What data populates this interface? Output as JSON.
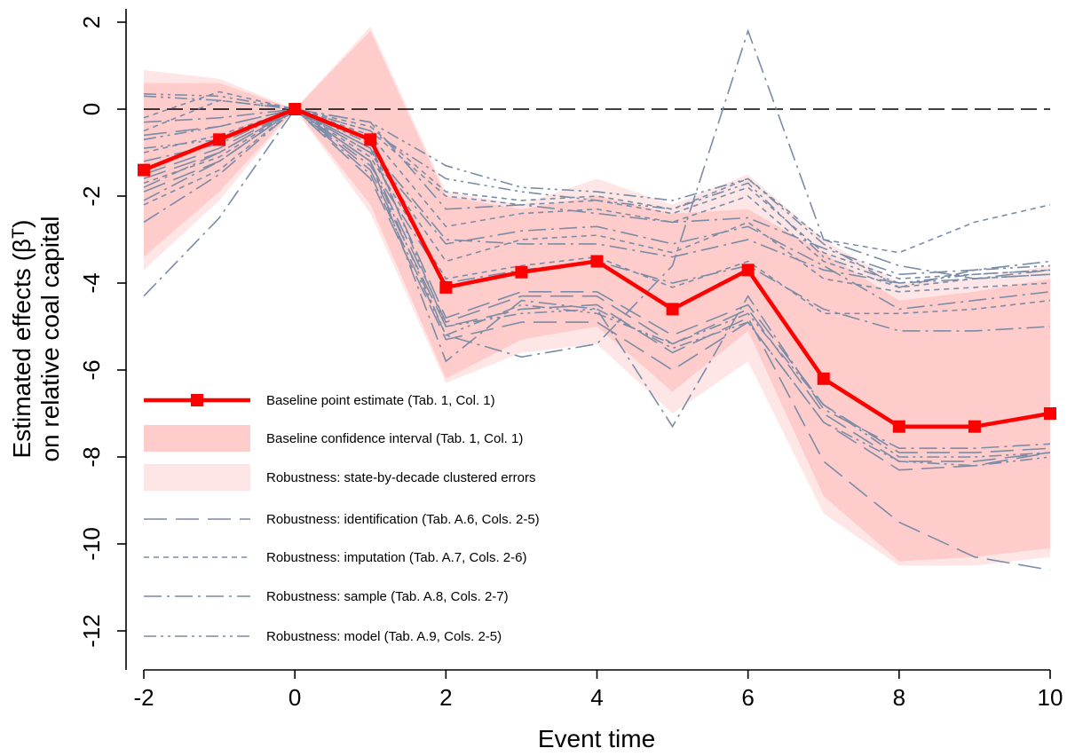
{
  "chart_data": {
    "type": "line",
    "xlabel": "Event time",
    "ylabel_line1": "Estimated effects (βᵀ)",
    "ylabel_line2": "on relative coal capital",
    "xlim": [
      -2,
      10
    ],
    "ylim": [
      -13,
      2.4
    ],
    "x_ticks": [
      -2,
      0,
      2,
      4,
      6,
      8,
      10
    ],
    "x_tick_labels": [
      "-2",
      "0",
      "2",
      "4",
      "6",
      "8",
      "10"
    ],
    "y_ticks": [
      2,
      0,
      -2,
      -4,
      -6,
      -8,
      -10,
      -12
    ],
    "y_tick_labels": [
      "2",
      "0",
      "-2",
      "-4",
      "-6",
      "-8",
      "-10",
      "-12"
    ],
    "reference_line": {
      "y": 0,
      "style": "dashed"
    },
    "x": [
      -2,
      -1,
      0,
      1,
      2,
      3,
      4,
      5,
      6,
      7,
      8,
      9,
      10
    ],
    "baseline_estimate": {
      "name": "Baseline point estimate (Tab. 1, Col. 1)",
      "color": "#ff0000",
      "values": [
        -1.4,
        -0.7,
        0,
        -0.7,
        -4.1,
        -3.75,
        -3.5,
        -4.6,
        -3.7,
        -6.2,
        -7.3,
        -7.3,
        -7.0
      ]
    },
    "baseline_ci": {
      "name": "Baseline confidence interval (Tab. 1, Col. 1)",
      "color": "#ffcccc",
      "upper": [
        0.6,
        0.6,
        0,
        1.8,
        -2.0,
        -2.3,
        -2.0,
        -2.4,
        -2.3,
        -3.3,
        -4.4,
        -4.2,
        -3.9
      ],
      "lower": [
        -3.4,
        -1.9,
        0,
        -2.2,
        -6.2,
        -5.3,
        -5.0,
        -6.5,
        -5.1,
        -8.9,
        -10.4,
        -10.3,
        -10.1
      ]
    },
    "robust_ci": {
      "name": "Robustness: state-by-decade clustered errors",
      "color": "#ffe6e6",
      "upper": [
        0.9,
        0.7,
        0,
        1.9,
        -1.9,
        -2.2,
        -1.6,
        -2.2,
        -1.5,
        -3.0,
        -4.0,
        -3.9,
        -3.6
      ],
      "lower": [
        -3.7,
        -2.1,
        0,
        -2.4,
        -6.3,
        -5.6,
        -5.4,
        -7.0,
        -5.8,
        -9.3,
        -10.5,
        -10.5,
        -10.3
      ]
    },
    "robustness_color": "#7a8ca6",
    "robustness_groups": [
      {
        "name": "Robustness: identification (Tab. A.6, Cols. 2-5)",
        "style": "longdash",
        "series": [
          [
            -1.5,
            -0.9,
            0,
            -1.2,
            -4.9,
            -4.3,
            -4.3,
            -5.4,
            -4.6,
            -7.0,
            -8.1,
            -8.1,
            -7.9
          ],
          [
            -1.6,
            -1.0,
            0,
            -1.4,
            -5.0,
            -4.6,
            -4.5,
            -5.6,
            -4.8,
            -8.1,
            -9.5,
            -10.3,
            -10.6
          ],
          [
            -0.6,
            -0.4,
            0,
            -0.9,
            -4.8,
            -4.2,
            -4.2,
            -5.2,
            -4.5,
            -6.8,
            -7.9,
            -7.9,
            -7.8
          ],
          [
            -1.9,
            -1.2,
            0,
            -1.6,
            -5.3,
            -4.9,
            -4.9,
            -6.0,
            -4.9,
            -7.2,
            -8.3,
            -8.2,
            -7.9
          ]
        ]
      },
      {
        "name": "Robustness: imputation (Tab. A.7, Cols. 2-6)",
        "style": "shortdash",
        "series": [
          [
            -0.2,
            0.4,
            0,
            -0.4,
            -1.9,
            -2.1,
            -2.0,
            -2.3,
            -1.6,
            -3.0,
            -3.3,
            -2.6,
            -2.2
          ],
          [
            -0.5,
            0.2,
            0,
            -0.5,
            -2.0,
            -2.2,
            -2.1,
            -2.4,
            -1.8,
            -3.3,
            -3.9,
            -3.8,
            -3.7
          ],
          [
            -1.0,
            -0.6,
            0,
            -0.6,
            -2.7,
            -2.4,
            -2.3,
            -2.6,
            -2.0,
            -3.5,
            -4.1,
            -3.9,
            -3.8
          ],
          [
            -1.7,
            -1.1,
            0,
            -1.0,
            -3.5,
            -3.0,
            -2.9,
            -3.3,
            -2.6,
            -3.9,
            -4.2,
            -4.1,
            -4.0
          ],
          [
            -2.2,
            -1.4,
            0,
            -1.1,
            -3.9,
            -3.6,
            -3.4,
            -4.1,
            -3.5,
            -4.7,
            -4.7,
            -4.6,
            -4.4
          ]
        ]
      },
      {
        "name": "Robustness: sample (Tab. A.8, Cols. 2-7)",
        "style": "dashdot",
        "series": [
          [
            -4.3,
            -2.5,
            0,
            -1.5,
            -5.2,
            -5.7,
            -5.4,
            -3.6,
            1.8,
            -3.0,
            -3.6,
            -3.9,
            -3.7
          ],
          [
            -2.6,
            -1.5,
            0,
            -1.3,
            -4.0,
            -3.7,
            -3.5,
            -4.0,
            -3.6,
            -4.6,
            -5.1,
            -5.1,
            -5.0
          ],
          [
            -2.1,
            -1.2,
            0,
            -1.0,
            -3.1,
            -2.8,
            -2.7,
            -3.1,
            -2.7,
            -3.6,
            -4.6,
            -4.4,
            -4.2
          ],
          [
            -0.3,
            -0.2,
            0,
            -0.3,
            -2.3,
            -2.2,
            -2.4,
            -2.6,
            -2.5,
            -3.2,
            -3.8,
            -3.7,
            -3.5
          ],
          [
            -1.2,
            -0.8,
            0,
            -0.9,
            -3.0,
            -3.1,
            -3.1,
            -3.4,
            -3.0,
            -3.7,
            -4.0,
            -3.9,
            -3.8
          ],
          [
            -1.8,
            -1.0,
            0,
            -1.2,
            -5.8,
            -4.4,
            -4.6,
            -7.3,
            -4.3,
            -6.9,
            -7.8,
            -7.8,
            -7.7
          ]
        ]
      },
      {
        "name": "Robustness: model (Tab. A.9, Cols. 2-5)",
        "style": "dashdotdot",
        "series": [
          [
            0.35,
            0.3,
            0,
            -0.3,
            -1.3,
            -1.8,
            -1.9,
            -2.1,
            -1.6,
            -3.1,
            -4.1,
            -3.7,
            -3.6
          ],
          [
            0.3,
            0.2,
            0,
            -0.5,
            -1.6,
            -1.9,
            -2.1,
            -2.3,
            -1.7,
            -3.4,
            -4.0,
            -3.8,
            -3.7
          ],
          [
            -0.7,
            -0.4,
            0,
            -1.2,
            -5.2,
            -4.5,
            -4.7,
            -5.4,
            -4.7,
            -6.8,
            -8.0,
            -8.0,
            -7.9
          ],
          [
            -0.9,
            -0.7,
            0,
            -0.8,
            -5.0,
            -4.7,
            -4.6,
            -5.5,
            -4.9,
            -7.2,
            -8.1,
            -8.2,
            -8.0
          ]
        ]
      }
    ],
    "legend_location": "bottom-left inside plot",
    "legend": [
      {
        "label": "Baseline point estimate (Tab. 1, Col. 1)",
        "kind": "marker-line"
      },
      {
        "label": "Baseline confidence interval (Tab. 1, Col. 1)",
        "kind": "band-dark"
      },
      {
        "label": "Robustness: state-by-decade clustered errors",
        "kind": "band-light"
      },
      {
        "label": "Robustness: identification (Tab. A.6, Cols. 2-5)",
        "kind": "longdash"
      },
      {
        "label": "Robustness: imputation (Tab. A.7, Cols. 2-6)",
        "kind": "shortdash"
      },
      {
        "label": "Robustness: sample (Tab. A.8, Cols. 2-7)",
        "kind": "dashdot"
      },
      {
        "label": "Robustness: model (Tab. A.9, Cols. 2-5)",
        "kind": "dashdotdot"
      }
    ]
  }
}
